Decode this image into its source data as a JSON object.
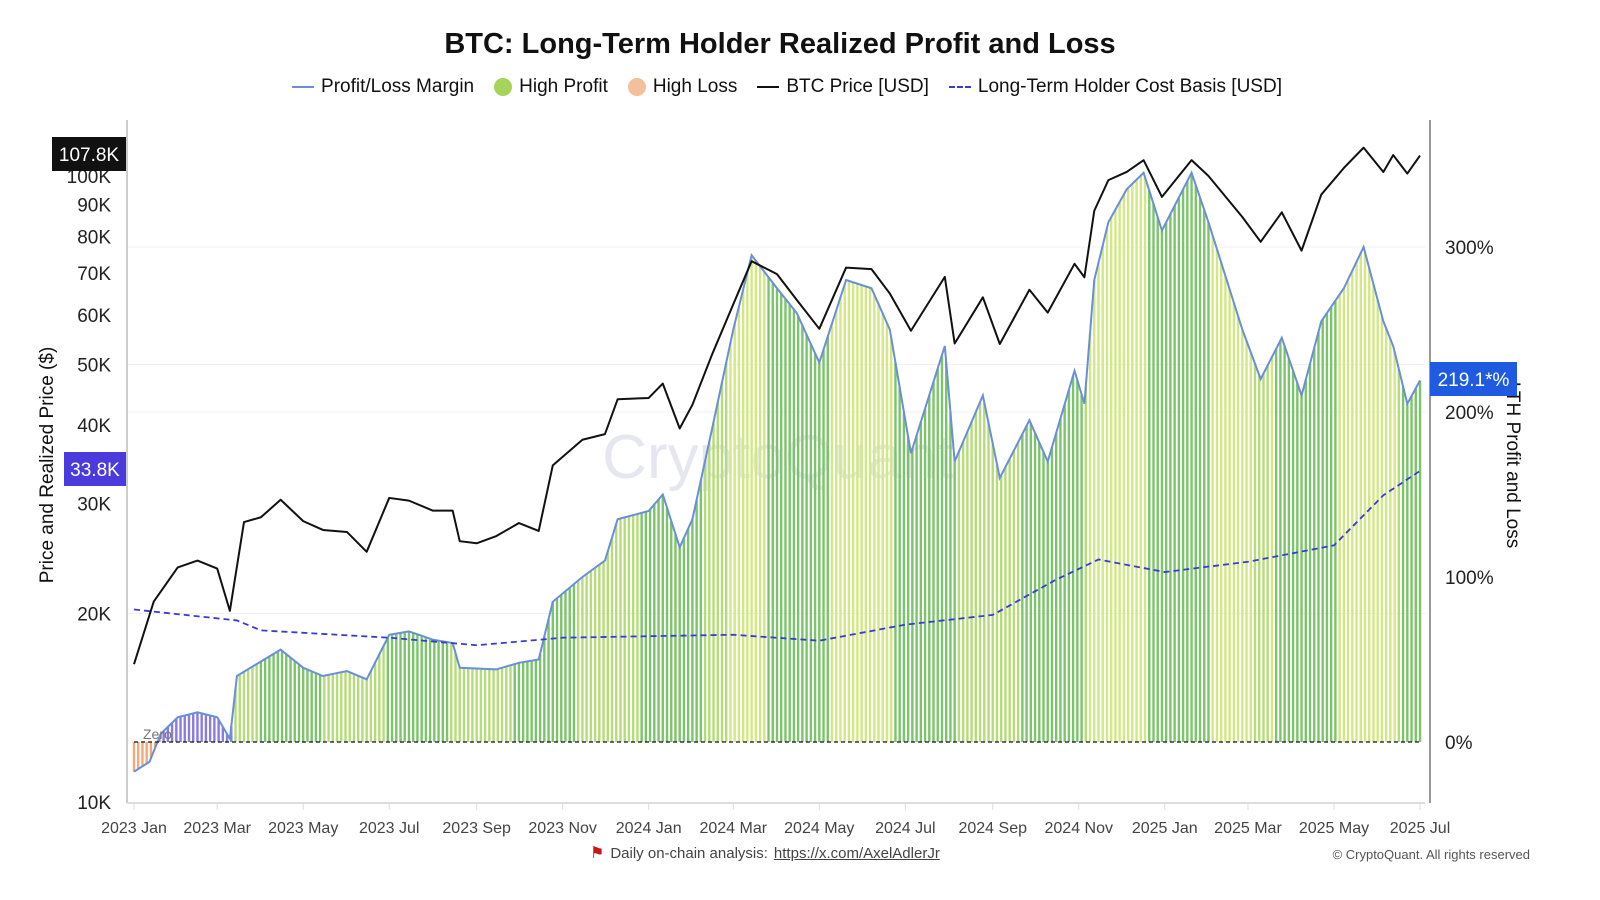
{
  "chart_data": {
    "type": "bar+line",
    "title": "BTC: Long-Term Holder Realized Profit and Loss",
    "legend": [
      {
        "name": "Profit/Loss Margin",
        "kind": "line",
        "color": "#6a8fd6"
      },
      {
        "name": "High Profit",
        "kind": "dot",
        "color": "#a6d45a"
      },
      {
        "name": "High Loss",
        "kind": "dot",
        "color": "#f2c09a"
      },
      {
        "name": "BTC Price [USD]",
        "kind": "line",
        "color": "#111111"
      },
      {
        "name": "Long-Term Holder Cost Basis [USD]",
        "kind": "dashed",
        "color": "#3b3bd0"
      }
    ],
    "legend_position": "top",
    "left_axis": {
      "label": "Price and Realized Price ($)",
      "scale": "log",
      "range": [
        10000,
        125000
      ],
      "ticks": [
        10000,
        20000,
        30000,
        40000,
        50000,
        60000,
        70000,
        80000,
        90000,
        100000
      ],
      "tick_labels": [
        "10K",
        "20K",
        "30K",
        "40K",
        "50K",
        "60K",
        "70K",
        "80K",
        "90K",
        "100K"
      ]
    },
    "right_axis": {
      "label": "LTH Profit and Loss",
      "range": [
        -37,
        415
      ],
      "ticks": [
        0,
        100,
        200,
        300
      ],
      "tick_labels": [
        "0%",
        "100%",
        "200%",
        "300%"
      ]
    },
    "x_axis": {
      "range": [
        "2023-01-01",
        "2025-07-04"
      ],
      "ticks": [
        "2023-01-01",
        "2023-03-01",
        "2023-05-01",
        "2023-07-01",
        "2023-09-01",
        "2023-11-01",
        "2024-01-01",
        "2024-03-01",
        "2024-05-01",
        "2024-07-01",
        "2024-09-01",
        "2024-11-01",
        "2025-01-01",
        "2025-03-01",
        "2025-05-01",
        "2025-07-01"
      ],
      "tick_labels": [
        "2023 Jan",
        "2023 Mar",
        "2023 May",
        "2023 Jul",
        "2023 Sep",
        "2023 Nov",
        "2024 Jan",
        "2024 Mar",
        "2024 May",
        "2024 Jul",
        "2024 Sep",
        "2024 Nov",
        "2025 Jan",
        "2025 Mar",
        "2025 May",
        "2025 Jul"
      ]
    },
    "zero_label": "Zero",
    "badges": {
      "price": "107.8K",
      "cost_basis": "33.8K",
      "margin": "219.1*%"
    },
    "btc_price": [
      [
        "2023-01-01",
        16600
      ],
      [
        "2023-01-15",
        20900
      ],
      [
        "2023-02-01",
        23700
      ],
      [
        "2023-02-15",
        24300
      ],
      [
        "2023-03-01",
        23600
      ],
      [
        "2023-03-10",
        20200
      ],
      [
        "2023-03-20",
        28000
      ],
      [
        "2023-04-01",
        28500
      ],
      [
        "2023-04-15",
        30400
      ],
      [
        "2023-05-01",
        28100
      ],
      [
        "2023-05-15",
        27200
      ],
      [
        "2023-06-01",
        27000
      ],
      [
        "2023-06-15",
        25100
      ],
      [
        "2023-07-01",
        30600
      ],
      [
        "2023-07-15",
        30300
      ],
      [
        "2023-08-01",
        29200
      ],
      [
        "2023-08-15",
        29200
      ],
      [
        "2023-08-20",
        26100
      ],
      [
        "2023-09-01",
        25900
      ],
      [
        "2023-09-15",
        26600
      ],
      [
        "2023-10-01",
        27900
      ],
      [
        "2023-10-15",
        27100
      ],
      [
        "2023-10-25",
        34500
      ],
      [
        "2023-11-15",
        37900
      ],
      [
        "2023-12-01",
        38700
      ],
      [
        "2023-12-10",
        44000
      ],
      [
        "2024-01-01",
        44200
      ],
      [
        "2024-01-11",
        46600
      ],
      [
        "2024-01-23",
        39500
      ],
      [
        "2024-02-01",
        43100
      ],
      [
        "2024-02-15",
        51900
      ],
      [
        "2024-03-01",
        62400
      ],
      [
        "2024-03-14",
        73100
      ],
      [
        "2024-04-01",
        69700
      ],
      [
        "2024-04-15",
        63400
      ],
      [
        "2024-05-01",
        57000
      ],
      [
        "2024-05-20",
        71400
      ],
      [
        "2024-06-07",
        71000
      ],
      [
        "2024-06-20",
        64900
      ],
      [
        "2024-07-05",
        56600
      ],
      [
        "2024-07-29",
        69000
      ],
      [
        "2024-08-05",
        54000
      ],
      [
        "2024-08-25",
        64000
      ],
      [
        "2024-09-06",
        53900
      ],
      [
        "2024-09-27",
        65800
      ],
      [
        "2024-10-10",
        60500
      ],
      [
        "2024-10-29",
        72400
      ],
      [
        "2024-11-05",
        68900
      ],
      [
        "2024-11-12",
        88000
      ],
      [
        "2024-11-22",
        98500
      ],
      [
        "2024-12-05",
        101500
      ],
      [
        "2024-12-17",
        106000
      ],
      [
        "2024-12-30",
        92600
      ],
      [
        "2025-01-20",
        106000
      ],
      [
        "2025-02-01",
        100000
      ],
      [
        "2025-02-25",
        86000
      ],
      [
        "2025-03-10",
        78500
      ],
      [
        "2025-03-25",
        87500
      ],
      [
        "2025-04-08",
        76000
      ],
      [
        "2025-04-22",
        93400
      ],
      [
        "2025-05-08",
        103000
      ],
      [
        "2025-05-22",
        111000
      ],
      [
        "2025-06-05",
        101500
      ],
      [
        "2025-06-12",
        108000
      ],
      [
        "2025-06-22",
        100900
      ],
      [
        "2025-07-01",
        107800
      ]
    ],
    "profit_loss_margin_pct": [
      [
        "2023-01-01",
        -18
      ],
      [
        "2023-01-12",
        -12
      ],
      [
        "2023-01-20",
        5
      ],
      [
        "2023-02-01",
        15
      ],
      [
        "2023-02-15",
        18
      ],
      [
        "2023-03-01",
        15
      ],
      [
        "2023-03-10",
        2
      ],
      [
        "2023-03-15",
        40
      ],
      [
        "2023-04-15",
        56
      ],
      [
        "2023-05-01",
        45
      ],
      [
        "2023-05-15",
        40
      ],
      [
        "2023-06-01",
        43
      ],
      [
        "2023-06-15",
        38
      ],
      [
        "2023-07-01",
        65
      ],
      [
        "2023-07-15",
        67
      ],
      [
        "2023-08-01",
        62
      ],
      [
        "2023-08-15",
        60
      ],
      [
        "2023-08-20",
        45
      ],
      [
        "2023-09-15",
        44
      ],
      [
        "2023-10-01",
        48
      ],
      [
        "2023-10-15",
        50
      ],
      [
        "2023-10-25",
        85
      ],
      [
        "2023-11-15",
        100
      ],
      [
        "2023-12-01",
        110
      ],
      [
        "2023-12-10",
        135
      ],
      [
        "2024-01-01",
        140
      ],
      [
        "2024-01-11",
        150
      ],
      [
        "2024-01-23",
        118
      ],
      [
        "2024-02-01",
        135
      ],
      [
        "2024-02-15",
        190
      ],
      [
        "2024-03-01",
        250
      ],
      [
        "2024-03-14",
        295
      ],
      [
        "2024-04-01",
        275
      ],
      [
        "2024-04-15",
        260
      ],
      [
        "2024-05-01",
        230
      ],
      [
        "2024-05-20",
        280
      ],
      [
        "2024-06-07",
        275
      ],
      [
        "2024-06-20",
        250
      ],
      [
        "2024-07-05",
        175
      ],
      [
        "2024-07-29",
        240
      ],
      [
        "2024-08-05",
        170
      ],
      [
        "2024-08-25",
        210
      ],
      [
        "2024-09-06",
        160
      ],
      [
        "2024-09-27",
        195
      ],
      [
        "2024-10-10",
        170
      ],
      [
        "2024-10-29",
        225
      ],
      [
        "2024-11-05",
        205
      ],
      [
        "2024-11-12",
        280
      ],
      [
        "2024-11-22",
        315
      ],
      [
        "2024-12-05",
        335
      ],
      [
        "2024-12-17",
        345
      ],
      [
        "2024-12-30",
        310
      ],
      [
        "2025-01-20",
        345
      ],
      [
        "2025-02-01",
        315
      ],
      [
        "2025-02-25",
        250
      ],
      [
        "2025-03-10",
        220
      ],
      [
        "2025-03-25",
        245
      ],
      [
        "2025-04-08",
        210
      ],
      [
        "2025-04-22",
        255
      ],
      [
        "2025-05-08",
        275
      ],
      [
        "2025-05-22",
        300
      ],
      [
        "2025-06-05",
        255
      ],
      [
        "2025-06-12",
        240
      ],
      [
        "2025-06-22",
        205
      ],
      [
        "2025-07-01",
        219.1
      ]
    ],
    "lth_cost_basis": [
      [
        "2023-01-01",
        20300
      ],
      [
        "2023-03-15",
        19500
      ],
      [
        "2023-04-01",
        18800
      ],
      [
        "2023-07-01",
        18300
      ],
      [
        "2023-09-01",
        17800
      ],
      [
        "2023-11-01",
        18300
      ],
      [
        "2024-03-01",
        18500
      ],
      [
        "2024-05-01",
        18100
      ],
      [
        "2024-07-01",
        19200
      ],
      [
        "2024-09-01",
        19900
      ],
      [
        "2024-10-15",
        22600
      ],
      [
        "2024-11-15",
        24400
      ],
      [
        "2025-01-01",
        23300
      ],
      [
        "2025-03-01",
        24200
      ],
      [
        "2025-05-01",
        25700
      ],
      [
        "2025-06-05",
        30900
      ],
      [
        "2025-07-01",
        33800
      ]
    ],
    "colors": {
      "high_profit_dark": "#7cc46a",
      "high_profit_light": "#d2e884",
      "low_profit": "#8a7be0",
      "loss": "#f2a878",
      "margin_line": "#6a8fd6",
      "price_badge": "#111111",
      "cost_badge": "#4b3bdc",
      "margin_badge": "#1f5be0"
    },
    "grid": true
  },
  "watermark": "CryptoQuant",
  "footer": {
    "text": "Daily on-chain analysis:",
    "link": "https://x.com/AxelAdlerJr",
    "copyright": "© CryptoQuant. All rights reserved"
  }
}
